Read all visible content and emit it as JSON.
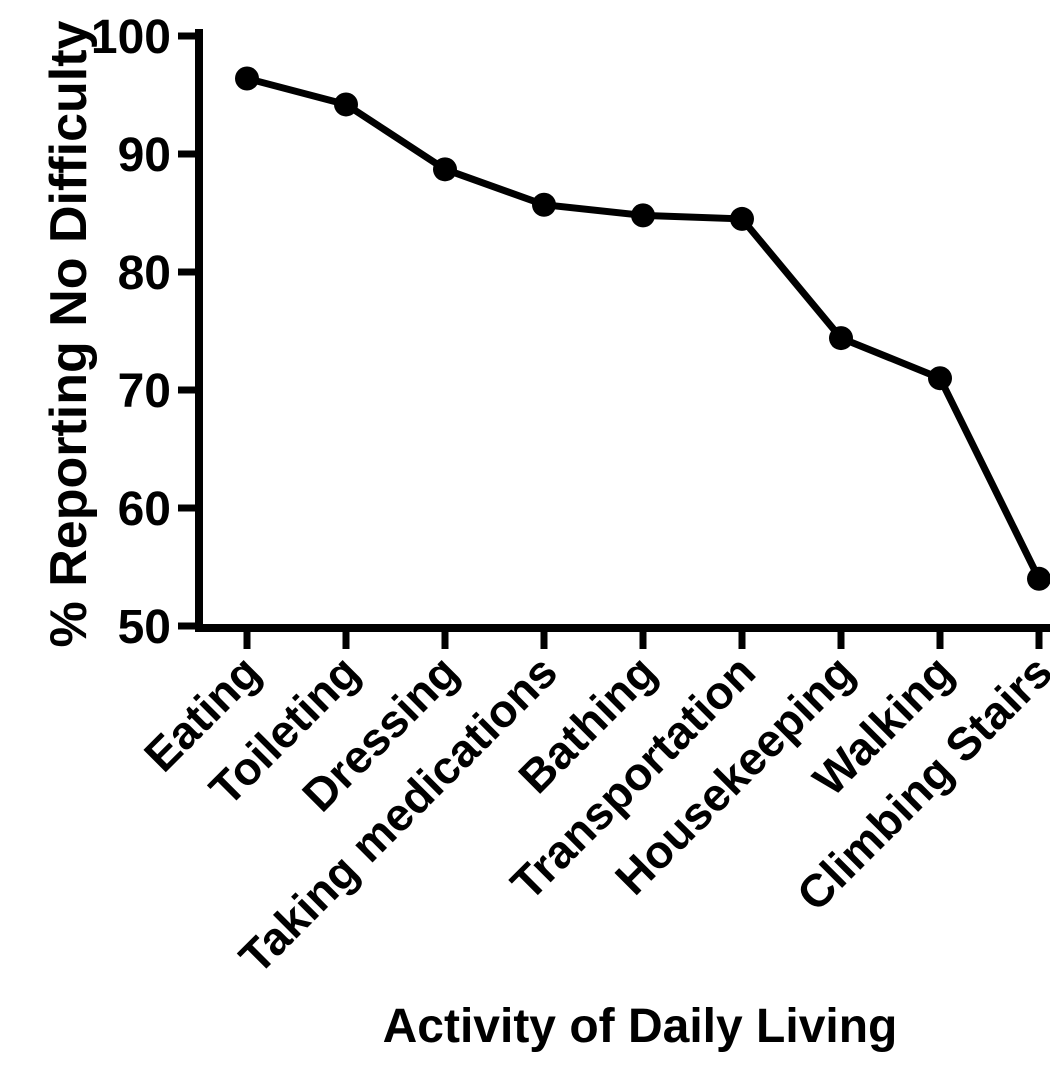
{
  "chart_data": {
    "type": "line",
    "title": "",
    "categories": [
      "Eating",
      "Toileting",
      "Dressing",
      "Taking medications",
      "Bathing",
      "Transportation",
      "Housekeeping",
      "Walking",
      "Climbing Stairs"
    ],
    "values": [
      96.4,
      94.2,
      88.7,
      85.7,
      84.8,
      84.5,
      74.4,
      71,
      54
    ],
    "xlabel": "Activity of Daily Living",
    "ylabel": "% Reporting No Difficulty",
    "ylim": [
      50,
      100
    ],
    "yticks": [
      50,
      60,
      70,
      80,
      90,
      100
    ],
    "x_tick_label_rotation_deg": 45,
    "grid": false,
    "legend": false,
    "marker": "filled-circle",
    "series_color": "#000000",
    "axis_color": "#000000",
    "background_color": "#ffffff"
  }
}
